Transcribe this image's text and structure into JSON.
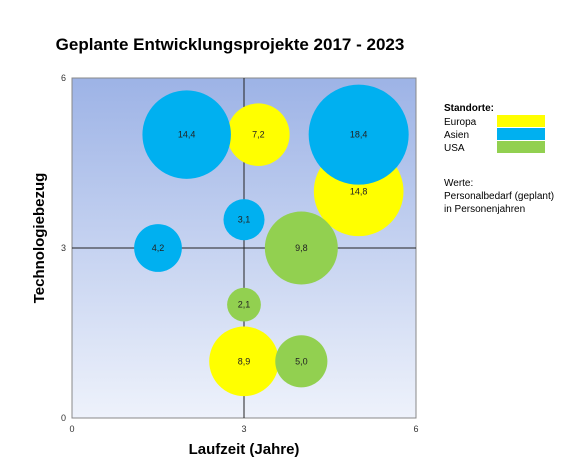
{
  "chart_data": {
    "type": "bubble",
    "title": "Geplante Entwicklungsprojekte 2017 - 2023",
    "xlabel": "Laufzeit (Jahre)",
    "ylabel": "Technologiebezug",
    "xlim": [
      0,
      6
    ],
    "ylim": [
      0,
      6
    ],
    "x_ticks": [
      "0",
      "3",
      "6"
    ],
    "y_ticks": [
      "0",
      "3",
      "6"
    ],
    "grid": "crosshair at 3",
    "legend": {
      "title": "Standorte:",
      "placement": "right",
      "entries": [
        {
          "name": "Europa",
          "color": "#ffff00"
        },
        {
          "name": "Asien",
          "color": "#00b0f0"
        },
        {
          "name": "USA",
          "color": "#92d050"
        }
      ],
      "note_title": "Werte:",
      "note_lines": [
        "Personalbedarf (geplant)",
        "in Personenjahren"
      ]
    },
    "series": [
      {
        "name": "Europa",
        "color": "#ffff00",
        "points": [
          {
            "x": 3.25,
            "y": 5.0,
            "value": 7.2,
            "label": "7,2"
          },
          {
            "x": 5.0,
            "y": 4.0,
            "value": 14.8,
            "label": "14,8"
          },
          {
            "x": 3.0,
            "y": 1.0,
            "value": 8.9,
            "label": "8,9"
          }
        ]
      },
      {
        "name": "Asien",
        "color": "#00b0f0",
        "points": [
          {
            "x": 2.0,
            "y": 5.0,
            "value": 14.4,
            "label": "14,4"
          },
          {
            "x": 5.0,
            "y": 5.0,
            "value": 18.4,
            "label": "18,4"
          },
          {
            "x": 3.0,
            "y": 3.5,
            "value": 3.1,
            "label": "3,1"
          },
          {
            "x": 1.5,
            "y": 3.0,
            "value": 4.2,
            "label": "4,2"
          }
        ]
      },
      {
        "name": "USA",
        "color": "#92d050",
        "points": [
          {
            "x": 4.0,
            "y": 3.0,
            "value": 9.8,
            "label": "9,8"
          },
          {
            "x": 3.0,
            "y": 2.0,
            "value": 2.1,
            "label": "2,1"
          },
          {
            "x": 4.0,
            "y": 1.0,
            "value": 5.0,
            "label": "5,0"
          }
        ]
      }
    ]
  }
}
